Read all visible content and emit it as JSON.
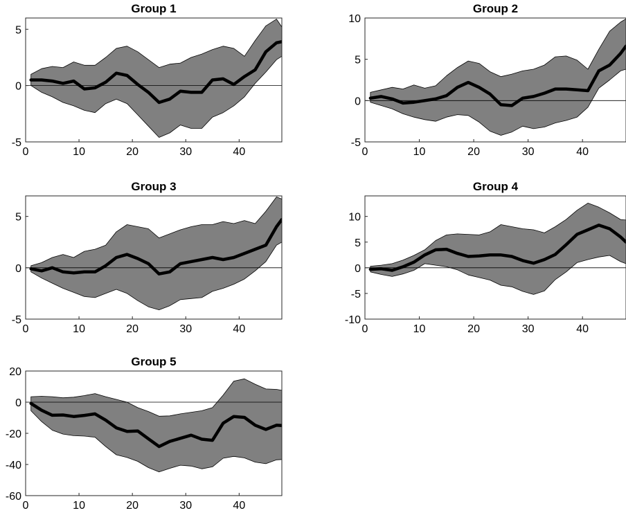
{
  "chart_data": [
    {
      "type": "area",
      "title": "Group 1",
      "xlim": [
        0,
        48
      ],
      "ylim": [
        -5,
        6
      ],
      "xticks": [
        0,
        10,
        20,
        30,
        40
      ],
      "yticks": [
        -5,
        0,
        5
      ],
      "x": [
        1,
        3,
        5,
        7,
        9,
        11,
        13,
        15,
        17,
        19,
        21,
        23,
        25,
        27,
        29,
        31,
        33,
        35,
        37,
        39,
        41,
        43,
        45,
        47,
        48
      ],
      "series": [
        {
          "role": "upper",
          "values": [
            1.0,
            1.5,
            1.7,
            1.6,
            2.1,
            1.8,
            1.8,
            2.5,
            3.3,
            3.5,
            3.0,
            2.3,
            1.6,
            1.9,
            2.0,
            2.5,
            2.8,
            3.2,
            3.5,
            3.3,
            2.6,
            4.0,
            5.3,
            5.9,
            5.2
          ]
        },
        {
          "role": "median",
          "values": [
            0.5,
            0.5,
            0.4,
            0.2,
            0.4,
            -0.3,
            -0.2,
            0.3,
            1.1,
            0.9,
            0.1,
            -0.6,
            -1.5,
            -1.2,
            -0.5,
            -0.6,
            -0.6,
            0.5,
            0.6,
            0.1,
            0.8,
            1.4,
            3.0,
            3.8,
            3.9
          ]
        },
        {
          "role": "lower",
          "values": [
            0.0,
            -0.6,
            -1.0,
            -1.5,
            -1.8,
            -2.2,
            -2.4,
            -1.6,
            -1.2,
            -1.6,
            -2.6,
            -3.6,
            -4.6,
            -4.2,
            -3.5,
            -3.8,
            -3.8,
            -2.8,
            -2.4,
            -1.8,
            -1.0,
            0.2,
            1.2,
            2.3,
            2.6
          ]
        }
      ]
    },
    {
      "type": "area",
      "title": "Group 2",
      "xlim": [
        0,
        48
      ],
      "ylim": [
        -5,
        10
      ],
      "xticks": [
        0,
        10,
        20,
        30,
        40
      ],
      "yticks": [
        -5,
        0,
        5,
        10
      ],
      "x": [
        1,
        3,
        5,
        7,
        9,
        11,
        13,
        15,
        17,
        19,
        21,
        23,
        25,
        27,
        29,
        31,
        33,
        35,
        37,
        39,
        41,
        43,
        45,
        47,
        48
      ],
      "series": [
        {
          "role": "upper",
          "values": [
            1.0,
            1.3,
            1.6,
            1.4,
            1.9,
            1.5,
            1.8,
            3.0,
            4.0,
            4.8,
            4.5,
            3.5,
            2.9,
            3.2,
            3.6,
            3.8,
            4.3,
            5.3,
            5.4,
            4.9,
            3.8,
            6.2,
            8.4,
            9.5,
            9.9
          ]
        },
        {
          "role": "median",
          "values": [
            0.3,
            0.5,
            0.2,
            -0.3,
            -0.2,
            0.0,
            0.2,
            0.6,
            1.6,
            2.2,
            1.6,
            0.8,
            -0.5,
            -0.6,
            0.3,
            0.5,
            0.9,
            1.4,
            1.4,
            1.3,
            1.2,
            3.6,
            4.3,
            5.7,
            6.6
          ]
        },
        {
          "role": "lower",
          "values": [
            -0.2,
            -0.6,
            -1.0,
            -1.6,
            -2.0,
            -2.3,
            -2.5,
            -2.0,
            -1.7,
            -1.8,
            -2.6,
            -3.7,
            -4.2,
            -3.8,
            -3.1,
            -3.4,
            -3.2,
            -2.7,
            -2.4,
            -2.0,
            -0.8,
            1.5,
            2.5,
            3.6,
            3.8
          ]
        }
      ]
    },
    {
      "type": "area",
      "title": "Group 3",
      "xlim": [
        0,
        48
      ],
      "ylim": [
        -5,
        7
      ],
      "xticks": [
        0,
        10,
        20,
        30,
        40
      ],
      "yticks": [
        -5,
        0,
        5
      ],
      "x": [
        1,
        3,
        5,
        7,
        9,
        11,
        13,
        15,
        17,
        19,
        21,
        23,
        25,
        27,
        29,
        31,
        33,
        35,
        37,
        39,
        41,
        43,
        45,
        47,
        48
      ],
      "series": [
        {
          "role": "upper",
          "values": [
            0.2,
            0.5,
            1.0,
            1.3,
            1.0,
            1.6,
            1.8,
            2.2,
            3.5,
            4.2,
            4.0,
            3.8,
            2.9,
            3.3,
            3.7,
            4.0,
            4.2,
            4.2,
            4.5,
            4.3,
            4.6,
            4.3,
            5.5,
            6.9,
            6.7
          ]
        },
        {
          "role": "median",
          "values": [
            -0.1,
            -0.3,
            0.0,
            -0.4,
            -0.5,
            -0.4,
            -0.4,
            0.2,
            1.0,
            1.3,
            0.9,
            0.4,
            -0.6,
            -0.4,
            0.4,
            0.6,
            0.8,
            1.0,
            0.8,
            1.0,
            1.4,
            1.8,
            2.2,
            4.0,
            4.7
          ]
        },
        {
          "role": "lower",
          "values": [
            -0.4,
            -1.0,
            -1.5,
            -2.0,
            -2.4,
            -2.8,
            -2.9,
            -2.5,
            -2.1,
            -2.5,
            -3.2,
            -3.8,
            -4.1,
            -3.7,
            -3.1,
            -3.0,
            -2.9,
            -2.3,
            -2.0,
            -1.6,
            -1.1,
            -0.3,
            0.6,
            2.2,
            2.5
          ]
        }
      ]
    },
    {
      "type": "area",
      "title": "Group 4",
      "xlim": [
        0,
        48
      ],
      "ylim": [
        -10,
        14
      ],
      "xticks": [
        0,
        10,
        20,
        30,
        40
      ],
      "yticks": [
        -10,
        -5,
        0,
        5,
        10
      ],
      "x": [
        1,
        3,
        5,
        7,
        9,
        11,
        13,
        15,
        17,
        19,
        21,
        23,
        25,
        27,
        29,
        31,
        33,
        35,
        37,
        39,
        41,
        43,
        45,
        47,
        48
      ],
      "series": [
        {
          "role": "upper",
          "values": [
            0.3,
            0.5,
            0.8,
            1.5,
            2.4,
            3.5,
            5.3,
            6.4,
            6.6,
            6.5,
            6.4,
            7.0,
            8.4,
            8.0,
            7.6,
            7.4,
            6.8,
            8.0,
            9.4,
            11.2,
            12.6,
            11.8,
            10.7,
            9.4,
            9.3
          ]
        },
        {
          "role": "median",
          "values": [
            -0.3,
            -0.2,
            -0.5,
            0.2,
            1.1,
            2.5,
            3.5,
            3.6,
            2.8,
            2.2,
            2.3,
            2.5,
            2.5,
            2.2,
            1.4,
            0.9,
            1.6,
            2.6,
            4.5,
            6.5,
            7.4,
            8.3,
            7.6,
            6.0,
            5.0
          ]
        },
        {
          "role": "lower",
          "values": [
            -0.8,
            -1.3,
            -1.7,
            -1.2,
            -0.5,
            0.8,
            0.5,
            0.2,
            -0.4,
            -1.4,
            -1.9,
            -2.4,
            -3.4,
            -3.7,
            -4.6,
            -5.2,
            -4.5,
            -2.3,
            -0.8,
            1.0,
            1.6,
            2.1,
            2.4,
            1.2,
            0.8
          ]
        }
      ]
    },
    {
      "type": "area",
      "title": "Group 5",
      "xlim": [
        0,
        48
      ],
      "ylim": [
        -60,
        20
      ],
      "xticks": [
        0,
        10,
        20,
        30,
        40
      ],
      "yticks": [
        -60,
        -40,
        -20,
        0,
        20
      ],
      "x": [
        1,
        3,
        5,
        7,
        9,
        11,
        13,
        15,
        17,
        19,
        21,
        23,
        25,
        27,
        29,
        31,
        33,
        35,
        37,
        39,
        41,
        43,
        45,
        47,
        48
      ],
      "series": [
        {
          "role": "upper",
          "values": [
            3.5,
            3.8,
            3.5,
            2.8,
            3.2,
            4.2,
            5.5,
            3.5,
            1.8,
            0.0,
            -3.5,
            -6.0,
            -9.0,
            -8.8,
            -7.5,
            -6.5,
            -5.5,
            -3.5,
            4.5,
            13.5,
            15.0,
            11.5,
            8.5,
            8.2,
            7.6
          ]
        },
        {
          "role": "median",
          "values": [
            -0.8,
            -5.2,
            -8.4,
            -8.2,
            -9.2,
            -8.5,
            -7.5,
            -11.5,
            -16.5,
            -18.8,
            -18.5,
            -23.5,
            -28.5,
            -25.2,
            -23.2,
            -21.2,
            -23.8,
            -24.5,
            -13.5,
            -9.2,
            -9.8,
            -14.8,
            -17.5,
            -14.8,
            -15.0
          ]
        },
        {
          "role": "lower",
          "values": [
            -5.5,
            -12.5,
            -18.0,
            -20.5,
            -21.5,
            -21.8,
            -22.5,
            -28.5,
            -33.8,
            -35.5,
            -38.0,
            -42.0,
            -44.8,
            -42.5,
            -40.5,
            -41.0,
            -42.8,
            -41.5,
            -36.0,
            -34.8,
            -35.8,
            -38.5,
            -39.5,
            -37.0,
            -36.8
          ]
        }
      ]
    }
  ]
}
